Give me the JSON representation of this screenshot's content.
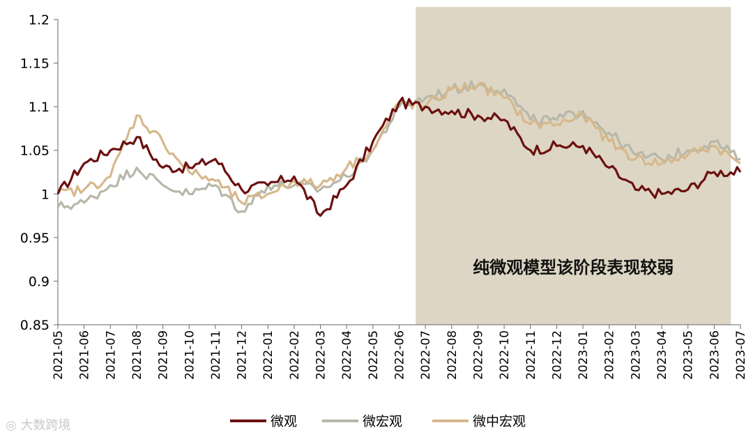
{
  "chart_data": {
    "type": "line",
    "title": "",
    "xlabel": "",
    "ylabel": "",
    "ylim": [
      0.85,
      1.2
    ],
    "yticks": [
      "1.2",
      "1.15",
      "1.1",
      "1.05",
      "1",
      "0.95",
      "0.9",
      "0.85"
    ],
    "x": [
      "2021-05",
      "2021-06",
      "2021-07",
      "2021-08",
      "2021-09",
      "2021-10",
      "2021-11",
      "2021-12",
      "2022-01",
      "2022-02",
      "2022-03",
      "2022-04",
      "2022-05",
      "2022-06",
      "2022-07",
      "2022-08",
      "2022-09",
      "2022-10",
      "2022-11",
      "2022-12",
      "2023-01",
      "2023-02",
      "2023-03",
      "2023-04",
      "2023-05",
      "2023-06",
      "2023-07"
    ],
    "shaded_range": [
      "2022-06-20",
      "2023-06-20"
    ],
    "annotation": "纯微观模型该阶段表现较弱",
    "legend_position": "bottom",
    "series": [
      {
        "name": "微观",
        "color": "#6b1010",
        "values": [
          1.0,
          1.035,
          1.05,
          1.065,
          1.03,
          1.03,
          1.04,
          1.005,
          1.01,
          1.02,
          0.975,
          1.01,
          1.06,
          1.105,
          1.1,
          1.095,
          1.09,
          1.085,
          1.05,
          1.055,
          1.055,
          1.03,
          1.005,
          1.0,
          1.005,
          1.025,
          1.025
        ]
      },
      {
        "name": "微宏观",
        "color": "#b7b7aa",
        "values": [
          0.985,
          0.99,
          1.01,
          1.03,
          1.01,
          1.0,
          1.01,
          0.98,
          1.01,
          1.01,
          1.005,
          1.02,
          1.05,
          1.1,
          1.11,
          1.12,
          1.125,
          1.12,
          1.085,
          1.085,
          1.095,
          1.07,
          1.045,
          1.04,
          1.05,
          1.06,
          1.04
        ]
      },
      {
        "name": "微中宏观",
        "color": "#d6b88c",
        "values": [
          1.0,
          1.005,
          1.02,
          1.09,
          1.06,
          1.025,
          1.015,
          0.99,
          1.0,
          1.015,
          1.01,
          1.03,
          1.05,
          1.105,
          1.1,
          1.12,
          1.125,
          1.11,
          1.08,
          1.08,
          1.09,
          1.06,
          1.04,
          1.035,
          1.045,
          1.055,
          1.035
        ]
      }
    ]
  },
  "watermark": "大数跨境"
}
